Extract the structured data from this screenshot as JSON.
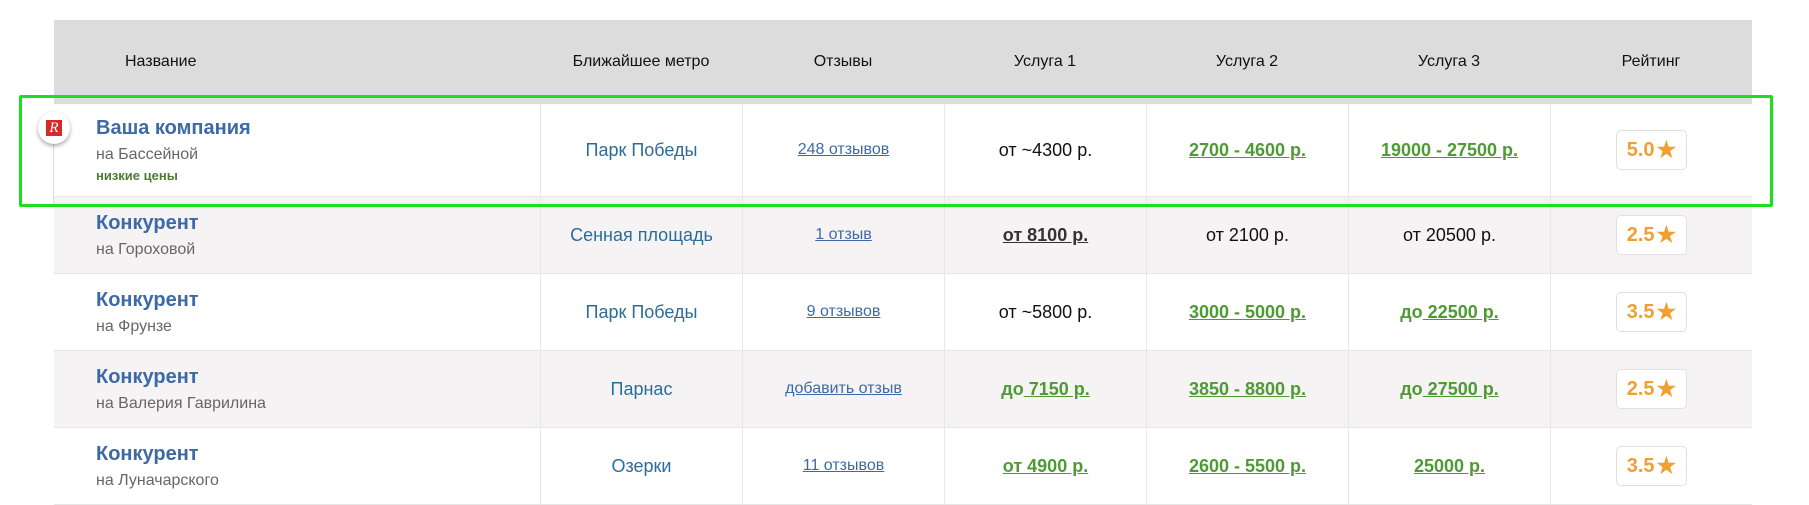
{
  "headers": [
    "Название",
    "Ближайшее метро",
    "Отзывы",
    "Услуга 1",
    "Услуга 2",
    "Услуга 3",
    "Рейтинг"
  ],
  "colors": {
    "highlight": "#1de01d",
    "name": "#3d6aa6",
    "price_green": "#4e9a34",
    "rating": "#f0a030",
    "header_bg": "#dcdcdc"
  },
  "icons": {
    "logo": "company-logo",
    "rating": "star-icon"
  },
  "rows": [
    {
      "name": "Ваша компания",
      "address": "на Бассейной",
      "tag": "низкие цены",
      "metro": "Парк Победы",
      "reviews": "248 отзывов",
      "s1": {
        "pre": "",
        "text": "от ~4300 р.",
        "style": "plain"
      },
      "s2": {
        "pre": "",
        "text": "2700 - 4600 р.",
        "style": "green"
      },
      "s3": {
        "pre": "",
        "text": "19000 - 27500 р.",
        "style": "green"
      },
      "rating": "5.0",
      "highlighted": true
    },
    {
      "name": "Конкурент",
      "address": "на Гороховой",
      "metro": "Сенная площадь",
      "reviews": "1 отзыв",
      "s1": {
        "pre": "",
        "text": "от 8100 р.",
        "style": "dark"
      },
      "s2": {
        "pre": "",
        "text": "от 2100 р.",
        "style": "plain"
      },
      "s3": {
        "pre": "",
        "text": "от 20500 р.",
        "style": "plain"
      },
      "rating": "2.5"
    },
    {
      "name": "Конкурент",
      "address": "на Фрунзе",
      "metro": "Парк Победы",
      "reviews": "9 отзывов",
      "s1": {
        "pre": "",
        "text": "от ~5800 р.",
        "style": "plain"
      },
      "s2": {
        "pre": "",
        "text": "3000 - 5000 р.",
        "style": "green"
      },
      "s3": {
        "pre": "до",
        "text": " 22500 р.",
        "style": "green"
      },
      "rating": "3.5"
    },
    {
      "name": "Конкурент",
      "address": "на Валерия Гаврилина",
      "metro": "Парнас",
      "reviews": "добавить отзыв",
      "s1": {
        "pre": "до",
        "text": " 7150 р.",
        "style": "green"
      },
      "s2": {
        "pre": "",
        "text": "3850 - 8800 р.",
        "style": "green"
      },
      "s3": {
        "pre": "до",
        "text": " 27500 р.",
        "style": "green"
      },
      "rating": "2.5"
    },
    {
      "name": "Конкурент",
      "address": "на Луначарского",
      "metro": "Озерки",
      "reviews": "11 отзывов",
      "s1": {
        "pre": "",
        "text": "от 4900 р.",
        "style": "green"
      },
      "s2": {
        "pre": "",
        "text": "2600 - 5500 р.",
        "style": "green"
      },
      "s3": {
        "pre": "",
        "text": "25000 р.",
        "style": "green"
      },
      "rating": "3.5"
    }
  ]
}
